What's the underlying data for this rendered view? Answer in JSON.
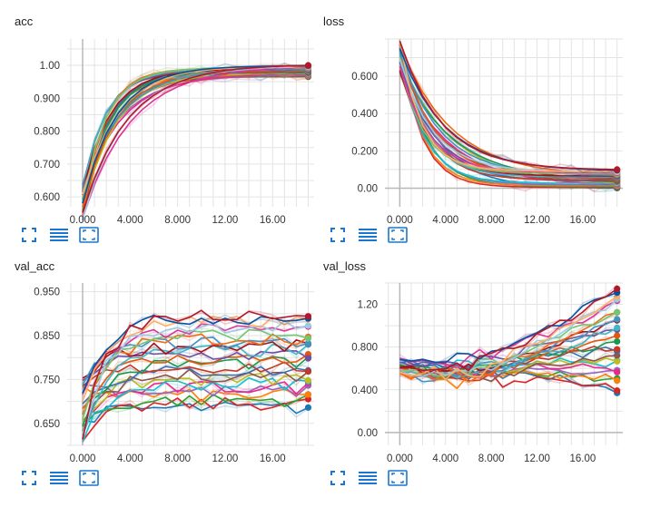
{
  "colors": {
    "grid": "#e3e3e3",
    "axis": "#b8b8b8",
    "icon": "#1976d2",
    "palette": [
      "#1f77b4",
      "#d62728",
      "#2ca02c",
      "#ff7f0e",
      "#9467bd",
      "#e7298a",
      "#17becf",
      "#bcbd22",
      "#8c564b",
      "#3a6fb0",
      "#c0392b",
      "#1a9850",
      "#e6550d",
      "#6a51a3",
      "#41b6c4",
      "#a50f15",
      "#4292c6",
      "#f16913",
      "#74c476",
      "#dd3497",
      "#9ecae1",
      "#fdae6b",
      "#08519c",
      "#b2182b"
    ]
  },
  "icons": [
    "fit-domain-icon",
    "toggle-log-scale-icon",
    "expand-chart-icon"
  ],
  "chart_data": [
    {
      "title": "acc",
      "type": "line",
      "x_ticks": [
        "0.000",
        "4.000",
        "8.000",
        "12.00",
        "16.00"
      ],
      "x_tick_values": [
        0,
        4,
        8,
        12,
        16
      ],
      "y_ticks": [
        "0.600",
        "0.700",
        "0.800",
        "0.900",
        "1.00"
      ],
      "y_tick_values": [
        0.6,
        0.7,
        0.8,
        0.9,
        1.0
      ],
      "xlim": [
        -1.3,
        19.5
      ],
      "ylim": [
        0.57,
        1.08
      ],
      "n_series": 24,
      "x": [
        0,
        1,
        2,
        3,
        4,
        5,
        6,
        7,
        8,
        9,
        10,
        11,
        12,
        13,
        14,
        15,
        16,
        17,
        18,
        19
      ],
      "start_range": [
        0.53,
        0.64
      ],
      "end_range": [
        0.965,
        1.0
      ],
      "shape": "saturating-rise"
    },
    {
      "title": "loss",
      "type": "line",
      "x_ticks": [
        "0.000",
        "4.000",
        "8.000",
        "12.00",
        "16.00"
      ],
      "x_tick_values": [
        0,
        4,
        8,
        12,
        16
      ],
      "y_ticks": [
        "0.00",
        "0.200",
        "0.400",
        "0.600"
      ],
      "y_tick_values": [
        0.0,
        0.2,
        0.4,
        0.6
      ],
      "xlim": [
        -1.3,
        19.5
      ],
      "ylim": [
        -0.1,
        0.8
      ],
      "n_series": 24,
      "x": [
        0,
        1,
        2,
        3,
        4,
        5,
        6,
        7,
        8,
        9,
        10,
        11,
        12,
        13,
        14,
        15,
        16,
        17,
        18,
        19
      ],
      "start_range": [
        0.6,
        0.8
      ],
      "end_range": [
        0.0,
        0.1
      ],
      "shape": "exponential-decay"
    },
    {
      "title": "val_acc",
      "type": "line",
      "x_ticks": [
        "0.000",
        "4.000",
        "8.000",
        "12.00",
        "16.00"
      ],
      "x_tick_values": [
        0,
        4,
        8,
        12,
        16
      ],
      "y_ticks": [
        "0.650",
        "0.750",
        "0.850",
        "0.950"
      ],
      "y_tick_values": [
        0.65,
        0.75,
        0.85,
        0.95
      ],
      "xlim": [
        -1.3,
        19.5
      ],
      "ylim": [
        0.6,
        0.97
      ],
      "n_series": 24,
      "x": [
        0,
        1,
        2,
        3,
        4,
        5,
        6,
        7,
        8,
        9,
        10,
        11,
        12,
        13,
        14,
        15,
        16,
        17,
        18,
        19
      ],
      "start_range": [
        0.6,
        0.76
      ],
      "end_range": [
        0.685,
        0.9
      ],
      "shape": "noisy-rise"
    },
    {
      "title": "val_loss",
      "type": "line",
      "x_ticks": [
        "0.000",
        "4.000",
        "8.000",
        "12.00",
        "16.00"
      ],
      "x_tick_values": [
        0,
        4,
        8,
        12,
        16
      ],
      "y_ticks": [
        "0.00",
        "0.400",
        "0.800",
        "1.20"
      ],
      "y_tick_values": [
        0.0,
        0.4,
        0.8,
        1.2
      ],
      "xlim": [
        -1.3,
        19.5
      ],
      "ylim": [
        -0.12,
        1.4
      ],
      "n_series": 24,
      "x": [
        0,
        1,
        2,
        3,
        4,
        5,
        6,
        7,
        8,
        9,
        10,
        11,
        12,
        13,
        14,
        15,
        16,
        17,
        18,
        19
      ],
      "start_range": [
        0.55,
        0.7
      ],
      "end_range": [
        0.38,
        1.38
      ],
      "shape": "dip-then-rise"
    }
  ]
}
